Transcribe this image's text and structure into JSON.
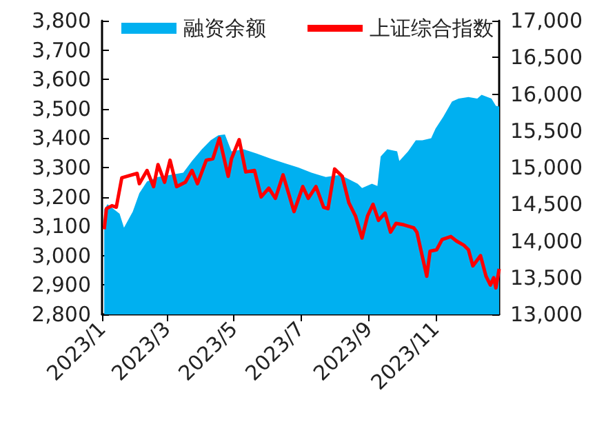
{
  "chart_data": {
    "type": "line",
    "legend": "top",
    "marker": "none",
    "xlim": [
      "2023-01-01",
      "2023-12-29"
    ],
    "xticks": [
      {
        "value": "2023-01-01",
        "label": "2023/1"
      },
      {
        "value": "2023-03-01",
        "label": "2023/3"
      },
      {
        "value": "2023-05-01",
        "label": "2023/5"
      },
      {
        "value": "2023-07-01",
        "label": "2023/7"
      },
      {
        "value": "2023-09-01",
        "label": "2023/9"
      },
      {
        "value": "2023-11-01",
        "label": "2023/11"
      }
    ],
    "ylim": [
      2800,
      3800
    ],
    "yticks": [
      {
        "value": 2800,
        "label": "2,800"
      },
      {
        "value": 2900,
        "label": "2,900"
      },
      {
        "value": 3000,
        "label": "3,000"
      },
      {
        "value": 3100,
        "label": "3,100"
      },
      {
        "value": 3200,
        "label": "3,200"
      },
      {
        "value": 3300,
        "label": "3,300"
      },
      {
        "value": 3400,
        "label": "3,400"
      },
      {
        "value": 3500,
        "label": "3,500"
      },
      {
        "value": 3600,
        "label": "3,600"
      },
      {
        "value": 3700,
        "label": "3,700"
      },
      {
        "value": 3800,
        "label": "3,800"
      }
    ],
    "y2lim": [
      13000,
      17000
    ],
    "y2ticks": [
      {
        "value": 13000,
        "label": "13,000"
      },
      {
        "value": 13500,
        "label": "13,500"
      },
      {
        "value": 14000,
        "label": "14,000"
      },
      {
        "value": 14500,
        "label": "14,500"
      },
      {
        "value": 15000,
        "label": "15,000"
      },
      {
        "value": 15500,
        "label": "15,500"
      },
      {
        "value": 16000,
        "label": "16,000"
      },
      {
        "value": 16500,
        "label": "16,500"
      },
      {
        "value": 17000,
        "label": "17,000"
      }
    ],
    "series": [
      {
        "name": "融资余额",
        "type": "area",
        "axis": "y2",
        "color": "#00b0f0",
        "x": [
          "2023-01-03",
          "2023-01-06",
          "2023-01-12",
          "2023-01-17",
          "2023-01-21",
          "2023-01-29",
          "2023-02-04",
          "2023-02-11",
          "2023-02-21",
          "2023-03-04",
          "2023-03-16",
          "2023-03-24",
          "2023-04-02",
          "2023-04-10",
          "2023-04-17",
          "2023-04-23",
          "2023-04-29",
          "2023-05-10",
          "2023-05-22",
          "2023-06-04",
          "2023-06-16",
          "2023-06-29",
          "2023-07-11",
          "2023-07-24",
          "2023-08-06",
          "2023-08-14",
          "2023-08-22",
          "2023-08-26",
          "2023-09-04",
          "2023-09-09",
          "2023-09-12",
          "2023-09-18",
          "2023-09-27",
          "2023-09-29",
          "2023-10-07",
          "2023-10-14",
          "2023-10-20",
          "2023-10-28",
          "2023-11-01",
          "2023-11-08",
          "2023-11-16",
          "2023-11-22",
          "2023-12-01",
          "2023-12-09",
          "2023-12-13",
          "2023-12-22",
          "2023-12-26",
          "2023-12-29"
        ],
        "values": [
          14430,
          14500,
          14430,
          14370,
          14180,
          14400,
          14650,
          14810,
          14870,
          14900,
          14930,
          15090,
          15250,
          15370,
          15440,
          15450,
          15220,
          15250,
          15190,
          15120,
          15060,
          15000,
          14930,
          14870,
          14900,
          14840,
          14780,
          14720,
          14780,
          14750,
          15150,
          15250,
          15220,
          15090,
          15220,
          15370,
          15370,
          15400,
          15530,
          15690,
          15900,
          15940,
          15960,
          15940,
          15990,
          15940,
          15840,
          15830
        ]
      },
      {
        "name": "上证综合指数",
        "type": "line",
        "axis": "y",
        "color": "#ff0000",
        "x": [
          "2023-01-03",
          "2023-01-05",
          "2023-01-10",
          "2023-01-14",
          "2023-01-19",
          "2023-02-02",
          "2023-02-04",
          "2023-02-11",
          "2023-02-17",
          "2023-02-21",
          "2023-02-27",
          "2023-03-04",
          "2023-03-10",
          "2023-03-18",
          "2023-03-24",
          "2023-03-29",
          "2023-04-06",
          "2023-04-12",
          "2023-04-18",
          "2023-04-26",
          "2023-04-29",
          "2023-05-06",
          "2023-05-12",
          "2023-05-20",
          "2023-05-26",
          "2023-06-02",
          "2023-06-08",
          "2023-06-15",
          "2023-06-25",
          "2023-07-03",
          "2023-07-08",
          "2023-07-15",
          "2023-07-22",
          "2023-07-26",
          "2023-08-01",
          "2023-08-08",
          "2023-08-14",
          "2023-08-20",
          "2023-08-26",
          "2023-08-31",
          "2023-09-05",
          "2023-09-10",
          "2023-09-16",
          "2023-09-21",
          "2023-09-26",
          "2023-10-03",
          "2023-10-12",
          "2023-10-15",
          "2023-10-24",
          "2023-10-27",
          "2023-11-02",
          "2023-11-07",
          "2023-11-15",
          "2023-11-20",
          "2023-11-27",
          "2023-12-01",
          "2023-12-05",
          "2023-12-12",
          "2023-12-17",
          "2023-12-21",
          "2023-12-24",
          "2023-12-26",
          "2023-12-29"
        ],
        "values": [
          3090,
          3160,
          3170,
          3165,
          3265,
          3280,
          3245,
          3290,
          3235,
          3310,
          3250,
          3325,
          3235,
          3250,
          3290,
          3245,
          3325,
          3330,
          3400,
          3270,
          3330,
          3395,
          3285,
          3290,
          3200,
          3230,
          3195,
          3275,
          3150,
          3235,
          3195,
          3235,
          3165,
          3160,
          3295,
          3270,
          3180,
          3135,
          3060,
          3135,
          3175,
          3120,
          3145,
          3080,
          3110,
          3105,
          3095,
          3080,
          2930,
          3015,
          3020,
          3055,
          3065,
          3050,
          3035,
          3020,
          2965,
          3000,
          2930,
          2900,
          2925,
          2890,
          2955
        ]
      }
    ]
  }
}
